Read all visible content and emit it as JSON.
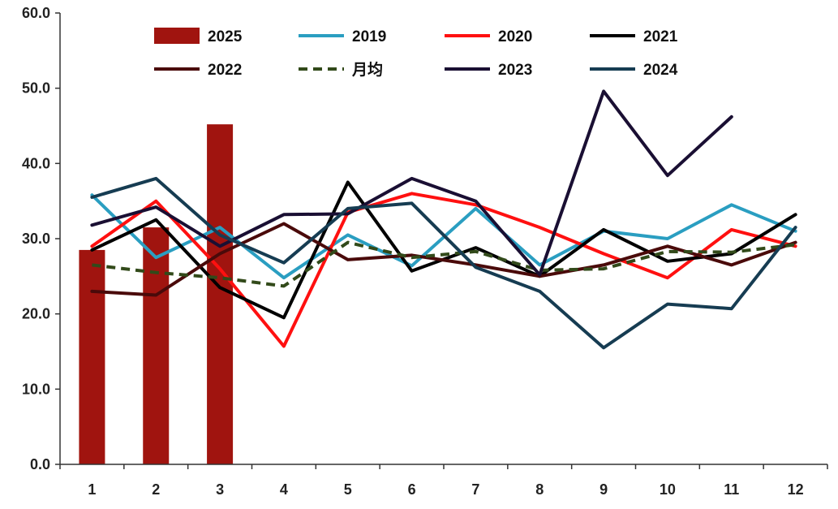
{
  "chart_data": {
    "type": "line",
    "categories": [
      "1",
      "2",
      "3",
      "4",
      "5",
      "6",
      "7",
      "8",
      "9",
      "10",
      "11",
      "12"
    ],
    "ylim": [
      0,
      60
    ],
    "yticks": [
      "0.0",
      "10.0",
      "20.0",
      "30.0",
      "40.0",
      "50.0",
      "60.0"
    ],
    "grid": false,
    "legend_position": "top",
    "bars": {
      "name": "2025",
      "color": "#a0140f",
      "values": [
        28.5,
        31.5,
        45.2
      ]
    },
    "series": [
      {
        "name": "2019",
        "color": "#2a9ec1",
        "dash": false,
        "values": [
          35.8,
          27.5,
          31.5,
          24.8,
          30.5,
          26.4,
          34.0,
          26.5,
          31.0,
          30.0,
          34.5,
          31.0
        ]
      },
      {
        "name": "2020",
        "color": "#ff1010",
        "dash": false,
        "values": [
          29.0,
          35.0,
          26.0,
          15.7,
          33.5,
          36.0,
          34.5,
          31.5,
          28.0,
          24.8,
          31.2,
          29.0
        ]
      },
      {
        "name": "2021",
        "color": "#000000",
        "dash": false,
        "values": [
          28.5,
          32.5,
          23.5,
          19.5,
          37.5,
          25.7,
          28.8,
          25.0,
          31.2,
          27.0,
          28.0,
          33.2
        ]
      },
      {
        "name": "2022",
        "color": "#4a0a0a",
        "dash": false,
        "values": [
          23.0,
          22.5,
          28.0,
          32.0,
          27.2,
          27.8,
          26.5,
          25.0,
          26.5,
          29.0,
          26.5,
          29.5
        ]
      },
      {
        "name": "月均",
        "color": "#324a1a",
        "dash": true,
        "values": [
          26.5,
          25.5,
          24.8,
          23.7,
          29.5,
          27.5,
          28.3,
          25.8,
          26.0,
          28.3,
          28.2,
          29.2
        ]
      },
      {
        "name": "2023",
        "color": "#1a0f33",
        "dash": false,
        "values": [
          31.8,
          34.2,
          29.0,
          33.2,
          33.3,
          38.0,
          35.0,
          25.2,
          49.6,
          38.4,
          46.2,
          null
        ]
      },
      {
        "name": "2024",
        "color": "#163c52",
        "dash": false,
        "values": [
          35.5,
          38.0,
          30.5,
          26.8,
          34.0,
          34.7,
          26.2,
          23.0,
          15.5,
          21.3,
          20.7,
          31.5
        ]
      }
    ]
  }
}
